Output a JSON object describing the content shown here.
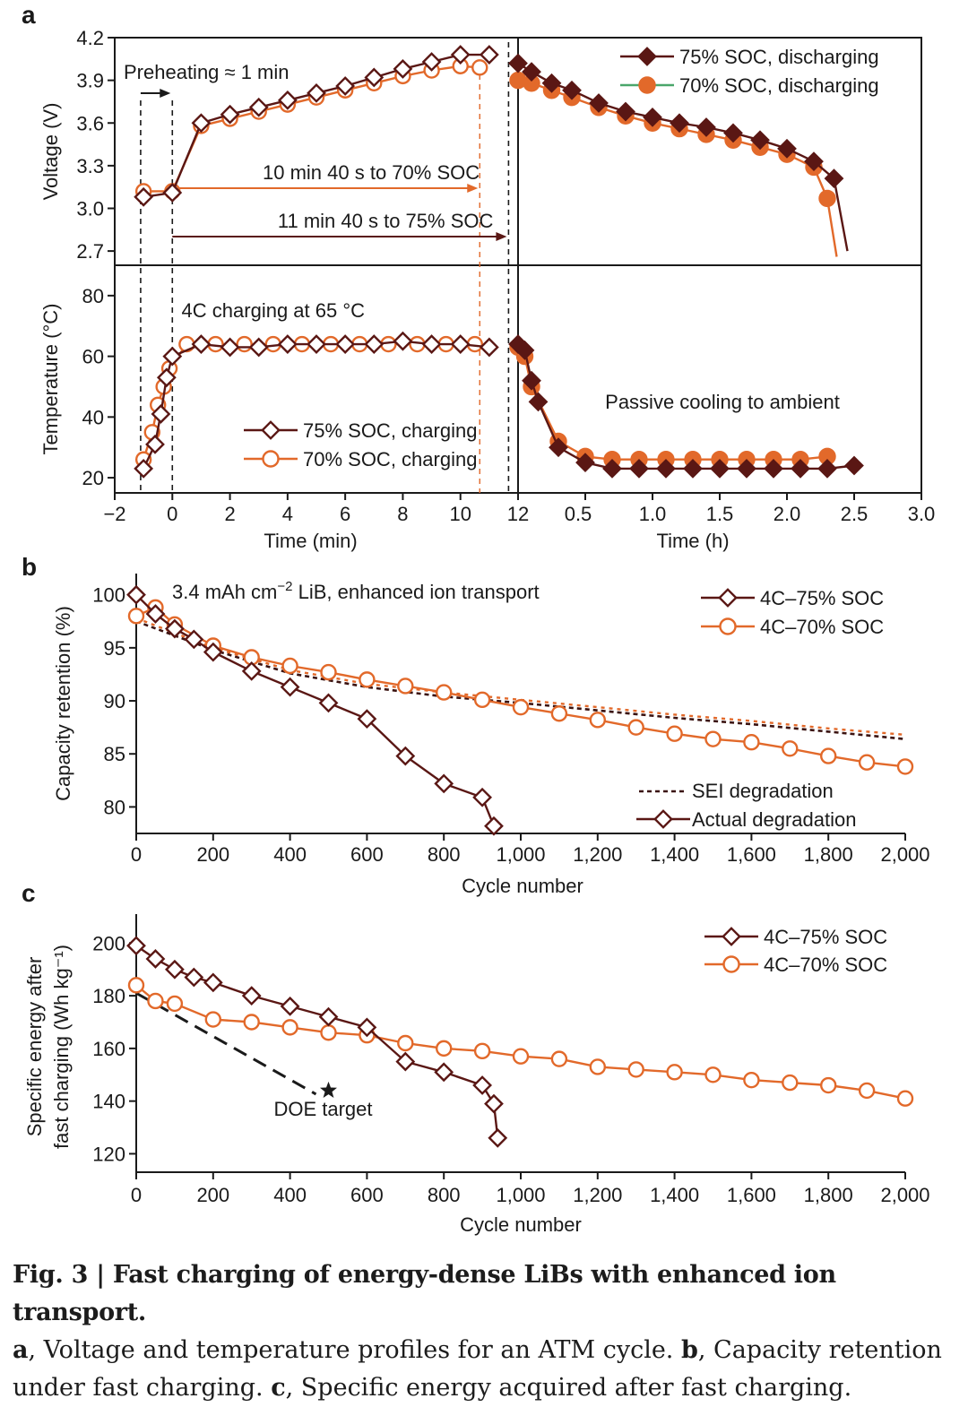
{
  "colors": {
    "dark": "#5a1714",
    "orange": "#e2692a",
    "axis": "#1a1a1a"
  },
  "chart_data": [
    {
      "panel": "a",
      "type": "line",
      "panel_label": "a",
      "top": {
        "ylabel": "Voltage (V)",
        "ylim": [
          2.6,
          4.2
        ],
        "yticks": [
          "4.2",
          "3.9",
          "3.6",
          "3.3",
          "3.0",
          "2.7"
        ],
        "left_xlim": [
          -2,
          12
        ],
        "right_xlim": [
          0,
          3
        ],
        "annotations": [
          "Preheating ≈ 1 min",
          "10 min 40 s to 70% SOC",
          "11 min 40 s to 75% SOC"
        ],
        "legend": [
          "75% SOC, discharging",
          "70% SOC, discharging"
        ],
        "series": [
          {
            "name": "75% SOC, charging",
            "x": [
              -1,
              0,
              1,
              2,
              3,
              4,
              5,
              6,
              7,
              8,
              9,
              10,
              11
            ],
            "y": [
              3.08,
              3.11,
              3.6,
              3.66,
              3.71,
              3.76,
              3.81,
              3.86,
              3.92,
              3.98,
              4.03,
              4.08,
              4.08
            ]
          },
          {
            "name": "70% SOC, charging",
            "x": [
              -1,
              0,
              1,
              2,
              3,
              4,
              5,
              6,
              7,
              8,
              9,
              10,
              10.67
            ],
            "y": [
              3.12,
              3.12,
              3.58,
              3.63,
              3.68,
              3.73,
              3.78,
              3.83,
              3.88,
              3.93,
              3.97,
              4.0,
              3.99
            ]
          },
          {
            "name": "75% SOC, discharging",
            "x": [
              0,
              0.1,
              0.25,
              0.4,
              0.6,
              0.8,
              1.0,
              1.2,
              1.4,
              1.6,
              1.8,
              2.0,
              2.2,
              2.35,
              2.45
            ],
            "y": [
              4.02,
              3.96,
              3.88,
              3.83,
              3.74,
              3.68,
              3.64,
              3.6,
              3.57,
              3.53,
              3.48,
              3.42,
              3.33,
              3.21,
              2.7
            ]
          },
          {
            "name": "70% SOC, discharging",
            "x": [
              0,
              0.1,
              0.25,
              0.4,
              0.6,
              0.8,
              1.0,
              1.2,
              1.4,
              1.6,
              1.8,
              2.0,
              2.2,
              2.3,
              2.37
            ],
            "y": [
              3.9,
              3.88,
              3.83,
              3.78,
              3.71,
              3.65,
              3.6,
              3.56,
              3.52,
              3.48,
              3.43,
              3.38,
              3.29,
              3.07,
              2.66
            ]
          }
        ]
      },
      "bottom": {
        "ylabel": "Temperature (°C)",
        "ylim": [
          15,
          90
        ],
        "yticks": [
          "80",
          "60",
          "40",
          "20"
        ],
        "xlabel_left": "Time (min)",
        "xlabel_right": "Time (h)",
        "xticks_left": [
          "−2",
          "0",
          "2",
          "4",
          "6",
          "8",
          "10",
          "12"
        ],
        "xticks_right": [
          "0.5",
          "1.0",
          "1.5",
          "2.0",
          "2.5",
          "3.0"
        ],
        "annotations": [
          "4C charging at 65 °C",
          "Passive cooling to ambient"
        ],
        "legend": [
          "75% SOC, charging",
          "70% SOC, charging"
        ],
        "series": [
          {
            "name": "75% SOC, charging",
            "x": [
              -1,
              -0.6,
              -0.4,
              -0.2,
              0,
              1,
              2,
              3,
              4,
              5,
              6,
              7,
              8,
              9,
              10,
              11
            ],
            "y": [
              23,
              31,
              41,
              53,
              60,
              64,
              63,
              63,
              64,
              64,
              64,
              64,
              65,
              64,
              64,
              63
            ]
          },
          {
            "name": "70% SOC, charging",
            "x": [
              -1,
              -0.7,
              -0.5,
              -0.3,
              -0.1,
              0.5,
              1.5,
              2.5,
              3.5,
              4.5,
              5.5,
              6.5,
              7.5,
              8.5,
              9.5,
              10.5
            ],
            "y": [
              26,
              35,
              44,
              50,
              56,
              64,
              64,
              64,
              64,
              64,
              64,
              64,
              64,
              64,
              64,
              64
            ]
          },
          {
            "name": "75% SOC, discharging",
            "x": [
              0,
              0.05,
              0.1,
              0.15,
              0.3,
              0.5,
              0.7,
              0.9,
              1.1,
              1.3,
              1.5,
              1.7,
              1.9,
              2.1,
              2.3,
              2.5
            ],
            "y": [
              64,
              62,
              52,
              45,
              30,
              25,
              23,
              23,
              23,
              23,
              23,
              23,
              23,
              23,
              23,
              24
            ]
          },
          {
            "name": "70% SOC, discharging",
            "x": [
              0,
              0.05,
              0.1,
              0.3,
              0.5,
              0.7,
              0.9,
              1.1,
              1.3,
              1.5,
              1.7,
              1.9,
              2.1,
              2.3
            ],
            "y": [
              63,
              60,
              50,
              32,
              27,
              26,
              26,
              26,
              26,
              26,
              26,
              26,
              26,
              27
            ]
          }
        ]
      }
    },
    {
      "panel": "b",
      "type": "line",
      "panel_label": "b",
      "title": "3.4 mAh cm⁻² LiB, enhanced ion transport",
      "title_parts": [
        "3.4 mAh cm",
        "−2",
        " LiB, enhanced ion transport"
      ],
      "xlabel": "Cycle number",
      "ylabel": "Capacity retention (%)",
      "xlim": [
        0,
        2000
      ],
      "ylim": [
        77.5,
        102
      ],
      "xticks": [
        "0",
        "200",
        "400",
        "600",
        "800",
        "1,000",
        "1,200",
        "1,400",
        "1,600",
        "1,800",
        "2,000"
      ],
      "yticks": [
        "100",
        "95",
        "90",
        "85",
        "80"
      ],
      "legend": [
        "4C–75% SOC",
        "4C–70% SOC"
      ],
      "legend2": [
        "SEI degradation",
        "Actual degradation"
      ],
      "series": [
        {
          "name": "4C–75% SOC",
          "x": [
            0,
            50,
            100,
            150,
            200,
            300,
            400,
            500,
            600,
            700,
            800,
            900,
            930
          ],
          "y": [
            100,
            98.2,
            96.8,
            95.8,
            94.6,
            92.8,
            91.3,
            89.8,
            88.3,
            84.8,
            82.2,
            80.9,
            78.2
          ]
        },
        {
          "name": "4C–70% SOC",
          "x": [
            0,
            50,
            100,
            200,
            300,
            400,
            500,
            600,
            700,
            800,
            900,
            1000,
            1100,
            1200,
            1300,
            1400,
            1500,
            1600,
            1700,
            1800,
            1900,
            2000
          ],
          "y": [
            98,
            98.8,
            97.2,
            95.2,
            94.1,
            93.3,
            92.7,
            92,
            91.4,
            90.8,
            90.1,
            89.4,
            88.8,
            88.2,
            87.5,
            86.9,
            86.4,
            86.1,
            85.5,
            84.8,
            84.2,
            83.8
          ]
        },
        {
          "name": "SEI degradation (75%)",
          "x": [
            0,
            200,
            400,
            600,
            800,
            1000,
            1200,
            1400,
            1600,
            1800,
            2000
          ],
          "y": [
            97.5,
            94.8,
            92.6,
            91.3,
            90.4,
            89.8,
            89.1,
            88.4,
            87.8,
            87.1,
            86.4
          ]
        },
        {
          "name": "SEI degradation (70%)",
          "x": [
            0,
            200,
            400,
            600,
            800,
            1000,
            1200,
            1400,
            1600,
            1800,
            2000
          ],
          "y": [
            97.8,
            95,
            92.9,
            91.6,
            90.8,
            90.1,
            89.4,
            88.7,
            88.1,
            87.4,
            86.8
          ]
        }
      ]
    },
    {
      "panel": "c",
      "type": "line",
      "panel_label": "c",
      "xlabel": "Cycle number",
      "ylabel_lines": [
        "Specific energy after",
        "fast charging (Wh kg⁻¹)"
      ],
      "xlim": [
        0,
        2000
      ],
      "ylim": [
        113,
        211
      ],
      "xticks": [
        "0",
        "200",
        "400",
        "600",
        "800",
        "1,000",
        "1,200",
        "1,400",
        "1,600",
        "1,800",
        "2,000"
      ],
      "yticks": [
        "200",
        "180",
        "160",
        "140",
        "120"
      ],
      "legend": [
        "4C–75% SOC",
        "4C–70% SOC"
      ],
      "annotation": "DOE target",
      "target_line": {
        "x": [
          0,
          500
        ],
        "y": [
          181,
          144
        ]
      },
      "series": [
        {
          "name": "4C–75% SOC",
          "x": [
            0,
            50,
            100,
            150,
            200,
            300,
            400,
            500,
            600,
            700,
            800,
            900,
            930,
            940
          ],
          "y": [
            199,
            194,
            190,
            187,
            185,
            180,
            176,
            172,
            168,
            155,
            151,
            146,
            139,
            126
          ]
        },
        {
          "name": "4C–70% SOC",
          "x": [
            0,
            50,
            100,
            200,
            300,
            400,
            500,
            600,
            700,
            800,
            900,
            1000,
            1100,
            1200,
            1300,
            1400,
            1500,
            1600,
            1700,
            1800,
            1900,
            2000
          ],
          "y": [
            184,
            178,
            177,
            171,
            170,
            168,
            166,
            165,
            162,
            160,
            159,
            157,
            156,
            153,
            152,
            151,
            150,
            148,
            147,
            146,
            144,
            141
          ]
        }
      ]
    }
  ],
  "caption": {
    "title": "Fig. 3 | Fast charging of energy-dense LiBs with enhanced ion transport.",
    "a_label": "a",
    "a_text": ", Voltage and temperature profiles for an ATM cycle. ",
    "b_label": "b",
    "b_text": ", Capacity retention under fast charging. ",
    "c_label": "c",
    "c_text": ", Specific energy acquired after fast charging."
  }
}
